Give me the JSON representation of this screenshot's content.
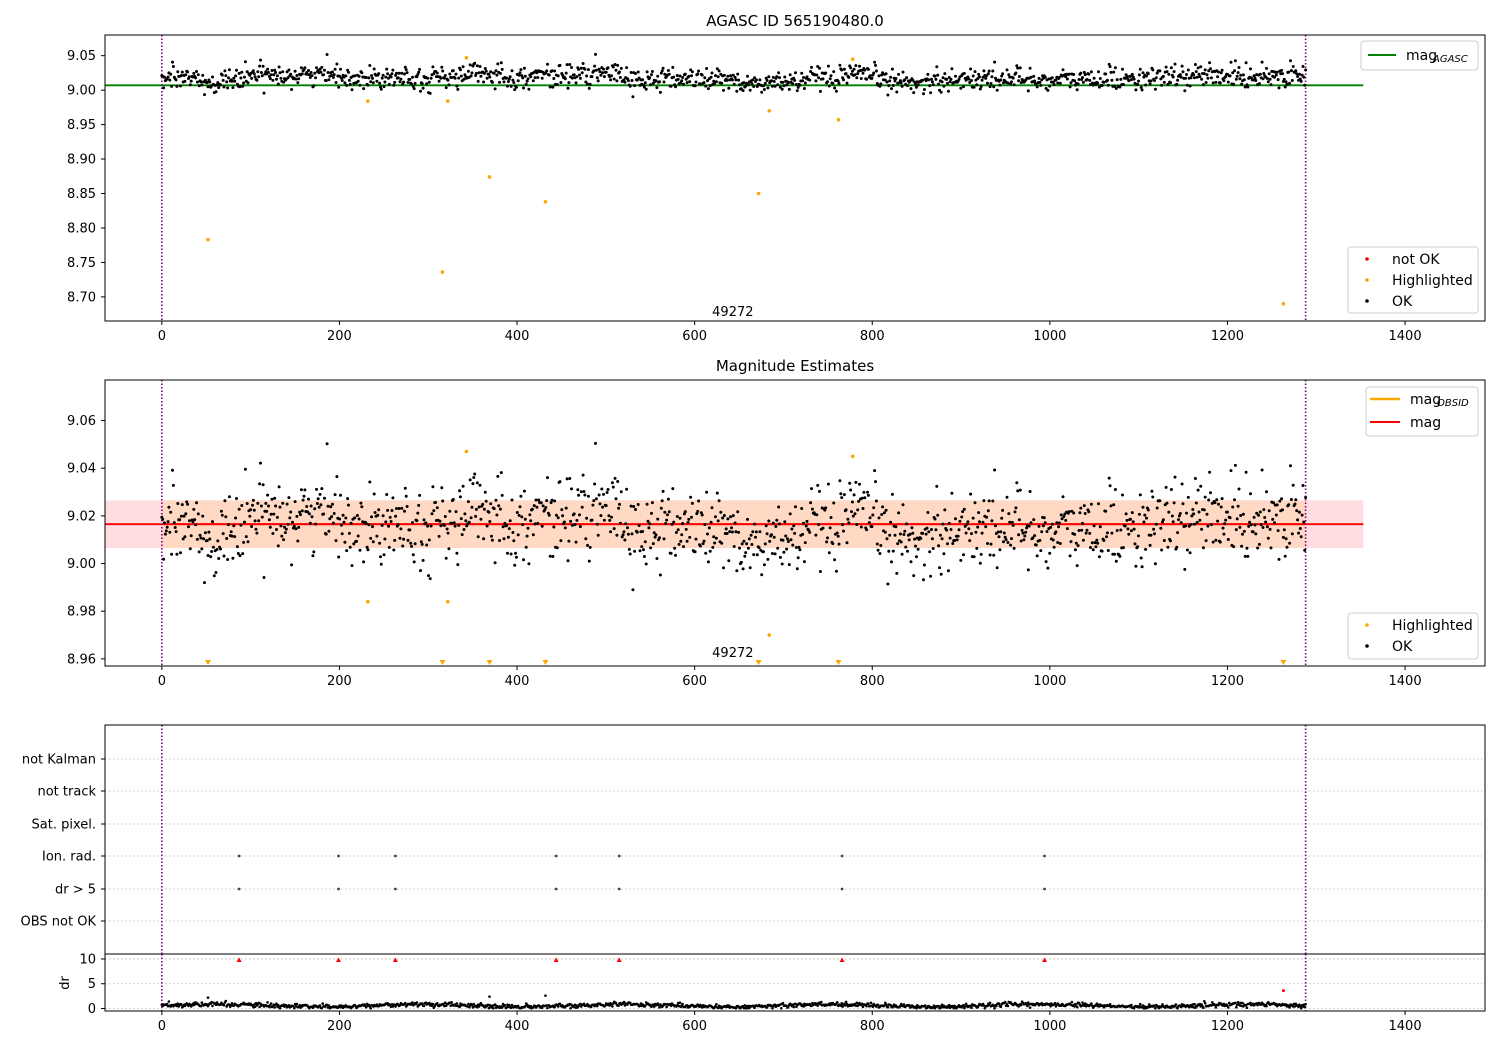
{
  "figure": {
    "top_title": "AGASC ID 565190480.0",
    "middle_title": "Magnitude Estimates",
    "obsid_annotation": "49272"
  },
  "colors": {
    "ok": "#000000",
    "highlighted": "#ffa500",
    "not_ok": "#ff0000",
    "mag_agasc": "#008000",
    "mag": "#ff0000",
    "mag_obsid": "#ffa500",
    "band_outer": "#ffdde1",
    "band_inner": "#ffd9c4",
    "vline": "#800080"
  },
  "chart_data": [
    {
      "type": "scatter",
      "title": "AGASC ID 565190480.0",
      "xlabel": "",
      "ylabel": "",
      "xlim": [
        -64,
        1490
      ],
      "ylim": [
        8.665,
        9.08
      ],
      "xticks": [
        0,
        200,
        400,
        600,
        800,
        1000,
        1200,
        1400
      ],
      "yticks": [
        8.7,
        8.75,
        8.8,
        8.85,
        8.9,
        8.95,
        9.0,
        9.05
      ],
      "ytick_labels": [
        "8.70",
        "8.75",
        "8.80",
        "8.85",
        "8.90",
        "8.95",
        "9.00",
        "9.05"
      ],
      "grid": false,
      "legend_upper": {
        "placement": "top-right",
        "entries": [
          {
            "label": "mag",
            "sub": "AGASC",
            "color": "#008000",
            "kind": "line"
          }
        ]
      },
      "legend_lower": {
        "placement": "bottom-right",
        "entries": [
          {
            "label": "not OK",
            "color": "#ff0000",
            "kind": "dot"
          },
          {
            "label": "Highlighted",
            "color": "#ffa500",
            "kind": "dot"
          },
          {
            "label": "OK",
            "color": "#000000",
            "kind": "dot"
          }
        ]
      },
      "hline": {
        "name": "mag_AGASC",
        "y": 9.007,
        "x_range": [
          -64,
          1353
        ]
      },
      "vlines": [
        0,
        1288
      ],
      "annotation": {
        "text": "49272",
        "x": 643,
        "y": 8.672
      },
      "ok_series": {
        "name": "OK",
        "n_points": 1288,
        "x_range": [
          0,
          1288
        ],
        "center": 9.017,
        "spread": 0.022
      },
      "highlighted": {
        "name": "Highlighted",
        "x": [
          52,
          232,
          316,
          322,
          343,
          369,
          432,
          672,
          684,
          762,
          778,
          1263
        ],
        "y": [
          8.783,
          8.984,
          8.736,
          8.984,
          9.047,
          8.874,
          8.838,
          8.85,
          8.97,
          8.957,
          9.045,
          8.69
        ]
      }
    },
    {
      "type": "scatter",
      "title": "Magnitude Estimates",
      "xlabel": "",
      "ylabel": "",
      "xlim": [
        -64,
        1490
      ],
      "ylim": [
        8.957,
        9.077
      ],
      "xticks": [
        0,
        200,
        400,
        600,
        800,
        1000,
        1200,
        1400
      ],
      "yticks": [
        8.96,
        8.98,
        9.0,
        9.02,
        9.04,
        9.06
      ],
      "ytick_labels": [
        "8.96",
        "8.98",
        "9.00",
        "9.02",
        "9.04",
        "9.06"
      ],
      "grid": false,
      "legend_upper": {
        "placement": "top-right",
        "entries": [
          {
            "label": "mag",
            "sub": "OBSID",
            "color": "#ffa500",
            "kind": "line"
          },
          {
            "label": "mag",
            "sub": "",
            "color": "#ff0000",
            "kind": "line"
          }
        ]
      },
      "legend_lower": {
        "placement": "bottom-right",
        "entries": [
          {
            "label": "Highlighted",
            "color": "#ffa500",
            "kind": "dot"
          },
          {
            "label": "OK",
            "color": "#000000",
            "kind": "dot"
          }
        ]
      },
      "mag_line": {
        "y": 9.0165,
        "x_range": [
          -64,
          1353
        ]
      },
      "mag_obsid_line": {
        "y": 9.0165,
        "x_range": [
          0,
          1288
        ]
      },
      "band_outer": {
        "y": [
          9.0065,
          9.0265
        ],
        "x_range": [
          -64,
          1353
        ]
      },
      "band_inner": {
        "y": [
          9.0065,
          9.0265
        ],
        "x_range": [
          0,
          1288
        ]
      },
      "vlines": [
        0,
        1288
      ],
      "annotation": {
        "text": "49272",
        "x": 643,
        "y": 8.9608
      },
      "ok_series": {
        "name": "OK",
        "n_points": 1288,
        "x_range": [
          0,
          1288
        ],
        "center": 9.0155,
        "spread": 0.012
      },
      "highlighted": {
        "name": "Highlighted",
        "x": [
          232,
          322,
          343,
          684,
          778
        ],
        "y": [
          8.984,
          8.984,
          9.047,
          8.97,
          9.045
        ]
      },
      "below_range_markers": {
        "name": "Highlighted (below axis)",
        "x": [
          52,
          316,
          369,
          432,
          672,
          762,
          1263
        ]
      }
    },
    {
      "type": "scatter",
      "title": "",
      "xlabel": "",
      "ylabel": "",
      "xlim": [
        -64,
        1490
      ],
      "categories": [
        "not Kalman",
        "not track",
        "Sat. pixel.",
        "Ion. rad.",
        "dr > 5",
        "OBS not OK"
      ],
      "grid": true,
      "vlines": [
        0,
        1288
      ],
      "flags": {
        "Ion. rad.": [
          87,
          199,
          263,
          444,
          515,
          766,
          994
        ],
        "dr > 5": [
          87,
          199,
          263,
          444,
          515,
          766,
          994
        ]
      }
    },
    {
      "type": "scatter",
      "title": "",
      "xlabel": "",
      "ylabel": "dr",
      "xlim": [
        -64,
        1490
      ],
      "ylim": [
        -0.5,
        11
      ],
      "xticks": [
        0,
        200,
        400,
        600,
        800,
        1000,
        1200,
        1400
      ],
      "yticks": [
        0,
        5,
        10
      ],
      "ytick_labels": [
        "0",
        "5",
        "10"
      ],
      "grid": true,
      "vlines": [
        0,
        1288
      ],
      "dr_ok": {
        "name": "OK",
        "n_points": 1288,
        "center": 0.6,
        "spread": 0.4
      },
      "dr_outliers": {
        "x": [
          52,
          369,
          432
        ],
        "y": [
          2.2,
          2.4,
          2.6
        ]
      },
      "dr_not_ok": {
        "name": "not OK",
        "x": [
          87,
          199,
          263,
          444,
          515,
          766,
          994,
          1263
        ],
        "y": [
          9.8,
          9.8,
          9.8,
          9.8,
          9.8,
          9.8,
          9.8,
          3.6
        ]
      }
    }
  ]
}
